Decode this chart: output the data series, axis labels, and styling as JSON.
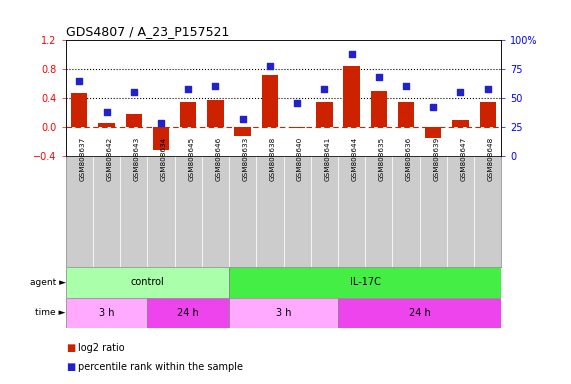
{
  "title": "GDS4807 / A_23_P157521",
  "samples": [
    "GSM808637",
    "GSM808642",
    "GSM808643",
    "GSM808634",
    "GSM808645",
    "GSM808646",
    "GSM808633",
    "GSM808638",
    "GSM808640",
    "GSM808641",
    "GSM808644",
    "GSM808635",
    "GSM808636",
    "GSM808639",
    "GSM808647",
    "GSM808648"
  ],
  "log2_ratio": [
    0.47,
    0.05,
    0.18,
    -0.33,
    0.35,
    0.37,
    -0.13,
    0.72,
    -0.02,
    0.34,
    0.85,
    0.49,
    0.34,
    -0.16,
    0.1,
    0.35
  ],
  "percentile": [
    65,
    38,
    55,
    28,
    58,
    60,
    32,
    78,
    46,
    58,
    88,
    68,
    60,
    42,
    55,
    58
  ],
  "ylim_left": [
    -0.4,
    1.2
  ],
  "ylim_right": [
    0,
    100
  ],
  "yticks_left": [
    -0.4,
    0.0,
    0.4,
    0.8,
    1.2
  ],
  "yticks_right": [
    0,
    25,
    50,
    75,
    100
  ],
  "ytick_labels_right": [
    "0",
    "25",
    "50",
    "75",
    "100%"
  ],
  "hlines_dotted": [
    0.4,
    0.8
  ],
  "bar_color": "#cc2200",
  "dot_color": "#2222cc",
  "zero_line_color": "#cc2200",
  "agent_groups": [
    {
      "label": "control",
      "start": 0,
      "end": 6,
      "color": "#aaffaa"
    },
    {
      "label": "IL-17C",
      "start": 6,
      "end": 16,
      "color": "#44ee44"
    }
  ],
  "time_groups": [
    {
      "label": "3 h",
      "start": 0,
      "end": 3,
      "color": "#ffaaff"
    },
    {
      "label": "24 h",
      "start": 3,
      "end": 6,
      "color": "#ee44ee"
    },
    {
      "label": "3 h",
      "start": 6,
      "end": 10,
      "color": "#ffaaff"
    },
    {
      "label": "24 h",
      "start": 10,
      "end": 16,
      "color": "#ee44ee"
    }
  ],
  "legend_red_label": "log2 ratio",
  "legend_blue_label": "percentile rank within the sample",
  "cell_bg": "#cccccc",
  "agent_label": "agent",
  "time_label": "time"
}
